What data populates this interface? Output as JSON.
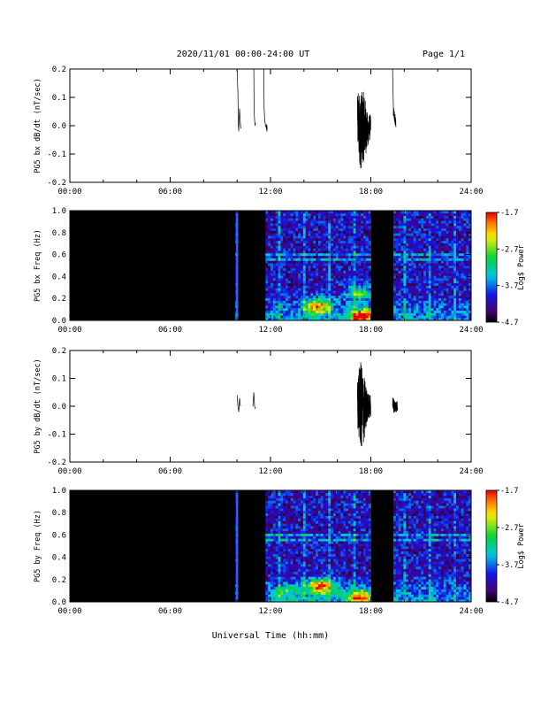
{
  "header": {
    "title": "2020/11/01   00:00-24:00 UT",
    "page": "Page 1/1"
  },
  "footer": {
    "xlabel": "Universal Time (hh:mm)"
  },
  "chart_data": [
    {
      "type": "line",
      "ylabel": "PG5 bx dB/dt (nT/sec)",
      "xlabel": "",
      "xlim": [
        0,
        24
      ],
      "ylim": [
        -0.2,
        0.2
      ],
      "x_ticks": [
        "00:00",
        "06:00",
        "12:00",
        "18:00",
        "24:00"
      ],
      "y_ticks": [
        "-0.2",
        "-0.1",
        "0.0",
        "0.1",
        "0.2"
      ],
      "series": [
        {
          "x": [
            10.0,
            10.05,
            10.08,
            10.1,
            10.15,
            10.2,
            10.23,
            11.0,
            11.02,
            11.05,
            11.08,
            11.1,
            11.6,
            11.62,
            11.65,
            11.7,
            11.8,
            12.5,
            13.3,
            14.4,
            15.5,
            16.5,
            16.9,
            17.2,
            17.4,
            17.6,
            17.8,
            18.0,
            19.3,
            19.35,
            19.5,
            19.8,
            20.5,
            22.0,
            23.0,
            24.0
          ],
          "y": [
            0.2,
            0.12,
            0.0,
            -0.02,
            0.06,
            0.01,
            -0.01,
            0.2,
            0.05,
            0.02,
            0.0,
            0.01,
            0.2,
            0.06,
            0.02,
            0.0,
            -0.01,
            -0.01,
            0.0,
            -0.02,
            0.0,
            0.0,
            -0.01,
            0.02,
            -0.02,
            0.0,
            -0.02,
            0.0,
            0.2,
            0.05,
            0.01,
            -0.01,
            -0.01,
            -0.01,
            -0.01,
            -0.01
          ],
          "amp": [
            0,
            0,
            0,
            0,
            0,
            0,
            0,
            0,
            0,
            0,
            0,
            0,
            0,
            0,
            0,
            0,
            0.02,
            0.03,
            0.05,
            0.04,
            0.03,
            0.04,
            0.06,
            0.1,
            0.14,
            0.12,
            0.06,
            0.04,
            0,
            0.02,
            0.02,
            0.01,
            0.008,
            0.005,
            0.004,
            0.003
          ]
        }
      ]
    },
    {
      "type": "heatmap",
      "ylabel": "PG5 bx Freq (Hz)",
      "xlim": [
        0,
        24
      ],
      "ylim": [
        0,
        1.0
      ],
      "x_ticks": [
        "00:00",
        "06:00",
        "12:00",
        "18:00",
        "24:00"
      ],
      "y_ticks": [
        "0.0",
        "0.2",
        "0.4",
        "0.6",
        "0.8",
        "1.0"
      ],
      "colorbar": {
        "label": "Log$ Power",
        "ticks": [
          "-1.7",
          "-2.7",
          "-3.7",
          "-4.7"
        ],
        "range": [
          -4.7,
          -1.7
        ]
      },
      "no_data_intervals": [
        [
          0,
          9.9
        ],
        [
          10.1,
          11.7
        ],
        [
          18.0,
          19.3
        ]
      ],
      "hotspots": [
        {
          "t": 14.8,
          "f": 0.13,
          "level": -2.2
        },
        {
          "t": 17.5,
          "f": 0.04,
          "level": -1.8
        },
        {
          "t": 17.3,
          "f": 0.25,
          "level": -2.9
        }
      ],
      "spectral_lines_hz": [
        0.56,
        0.61
      ],
      "vertical_streak_interval_h": 0.5
    },
    {
      "type": "line",
      "ylabel": "PG5 by dB/dt (nT/sec)",
      "xlabel": "",
      "xlim": [
        0,
        24
      ],
      "ylim": [
        -0.2,
        0.2
      ],
      "x_ticks": [
        "00:00",
        "06:00",
        "12:00",
        "18:00",
        "24:00"
      ],
      "y_ticks": [
        "-0.2",
        "-0.1",
        "0.0",
        "0.1",
        "0.2"
      ],
      "series": [
        {
          "x": [
            10.0,
            10.05,
            10.1,
            10.15,
            10.2,
            10.95,
            11.0,
            11.05,
            11.1,
            11.7,
            12.0,
            12.7,
            13.5,
            14.6,
            15.6,
            16.5,
            16.8,
            17.2,
            17.4,
            17.6,
            17.8,
            18.0,
            19.3,
            19.4,
            19.6,
            20.0,
            21.0,
            22.0,
            23.0,
            24.0
          ],
          "y": [
            0.04,
            0.0,
            -0.02,
            0.03,
            0.0,
            0.0,
            0.05,
            0.0,
            -0.01,
            0.01,
            0.0,
            -0.01,
            0.0,
            0.01,
            -0.01,
            0.0,
            0.01,
            0.02,
            0.0,
            -0.01,
            0.0,
            0.0,
            0.01,
            0.0,
            0.0,
            -0.01,
            -0.01,
            -0.01,
            -0.01,
            -0.01
          ],
          "amp": [
            0,
            0,
            0,
            0,
            0,
            0,
            0,
            0,
            0,
            0.02,
            0.025,
            0.03,
            0.04,
            0.04,
            0.03,
            0.04,
            0.06,
            0.1,
            0.16,
            0.12,
            0.05,
            0.04,
            0.03,
            0.025,
            0.02,
            0.012,
            0.006,
            0.004,
            0.003,
            0.003
          ]
        }
      ]
    },
    {
      "type": "heatmap",
      "ylabel": "PG5 by Freq (Hz)",
      "xlim": [
        0,
        24
      ],
      "ylim": [
        0,
        1.0
      ],
      "x_ticks": [
        "00:00",
        "06:00",
        "12:00",
        "18:00",
        "24:00"
      ],
      "y_ticks": [
        "0.0",
        "0.2",
        "0.4",
        "0.6",
        "0.8",
        "1.0"
      ],
      "colorbar": {
        "label": "Log$ Power",
        "ticks": [
          "-1.7",
          "-2.7",
          "-3.7",
          "-4.7"
        ],
        "range": [
          -4.7,
          -1.7
        ]
      },
      "no_data_intervals": [
        [
          0,
          9.9
        ],
        [
          10.1,
          11.7
        ],
        [
          18.0,
          19.3
        ]
      ],
      "hotspots": [
        {
          "t": 15.0,
          "f": 0.14,
          "level": -2.0
        },
        {
          "t": 17.4,
          "f": 0.04,
          "level": -2.3
        },
        {
          "t": 13.0,
          "f": 0.1,
          "level": -3.3
        }
      ],
      "spectral_lines_hz": [
        0.56,
        0.61
      ],
      "vertical_streak_interval_h": 0.5
    }
  ]
}
